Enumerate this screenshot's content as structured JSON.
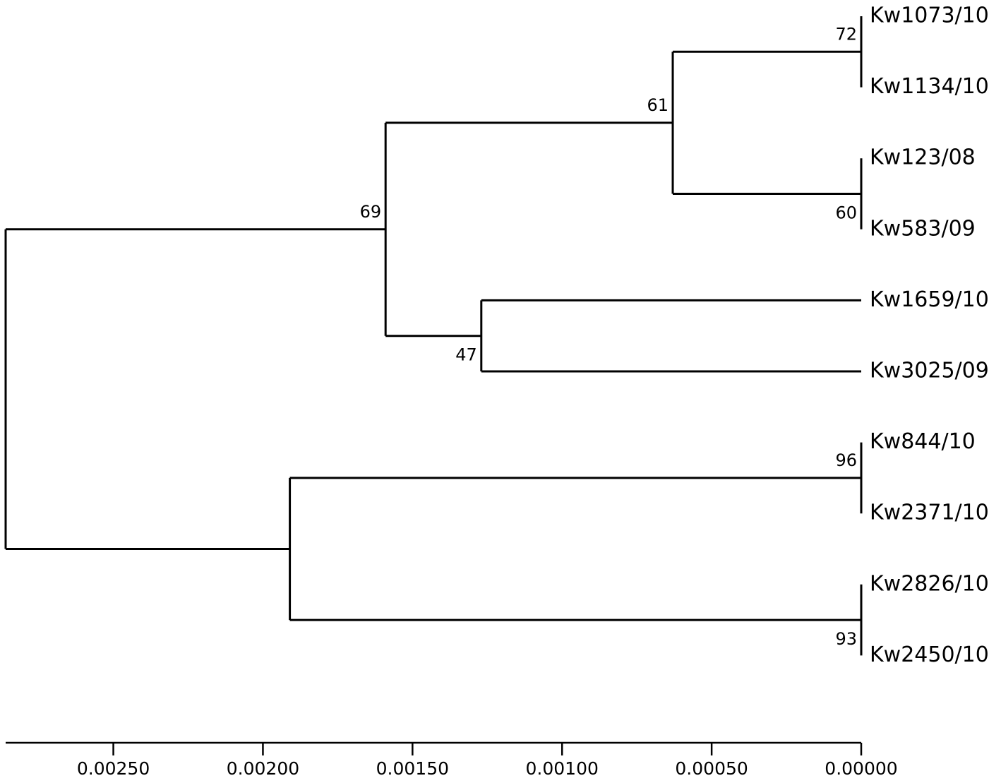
{
  "chart_data": {
    "type": "dendrogram",
    "tree": {
      "height": 0.00286,
      "children": [
        {
          "height": 0.00159,
          "support": 69,
          "children": [
            {
              "height": 0.00063,
              "support": 61,
              "children": [
                {
                  "height": 0,
                  "support": 72,
                  "children": [
                    {
                      "name": "Kw1073/10",
                      "height": 0
                    },
                    {
                      "name": "Kw1134/10",
                      "height": 0
                    }
                  ]
                },
                {
                  "height": 0,
                  "support": 60,
                  "children": [
                    {
                      "name": "Kw123/08",
                      "height": 0
                    },
                    {
                      "name": "Kw583/09",
                      "height": 0
                    }
                  ]
                }
              ]
            },
            {
              "height": 0.00127,
              "support": 47,
              "children": [
                {
                  "name": "Kw1659/10",
                  "height": 0
                },
                {
                  "name": "Kw3025/09",
                  "height": 0
                }
              ]
            }
          ]
        },
        {
          "height": 0.00191,
          "children": [
            {
              "height": 0,
              "support": 96,
              "children": [
                {
                  "name": "Kw844/10",
                  "height": 0
                },
                {
                  "name": "Kw2371/10",
                  "height": 0
                }
              ]
            },
            {
              "height": 0,
              "support": 93,
              "children": [
                {
                  "name": "Kw2826/10",
                  "height": 0
                },
                {
                  "name": "Kw2450/10",
                  "height": 0
                }
              ]
            }
          ]
        }
      ]
    },
    "xlim": [
      0.00286,
      0
    ],
    "xticks": [
      {
        "value": 0.0025,
        "label": "0.00250"
      },
      {
        "value": 0.002,
        "label": "0.00200"
      },
      {
        "value": 0.0015,
        "label": "0.00150"
      },
      {
        "value": 0.001,
        "label": "0.00100"
      },
      {
        "value": 0.0005,
        "label": "0.00050"
      },
      {
        "value": 0,
        "label": "0.00000"
      }
    ],
    "color": "#000000"
  }
}
